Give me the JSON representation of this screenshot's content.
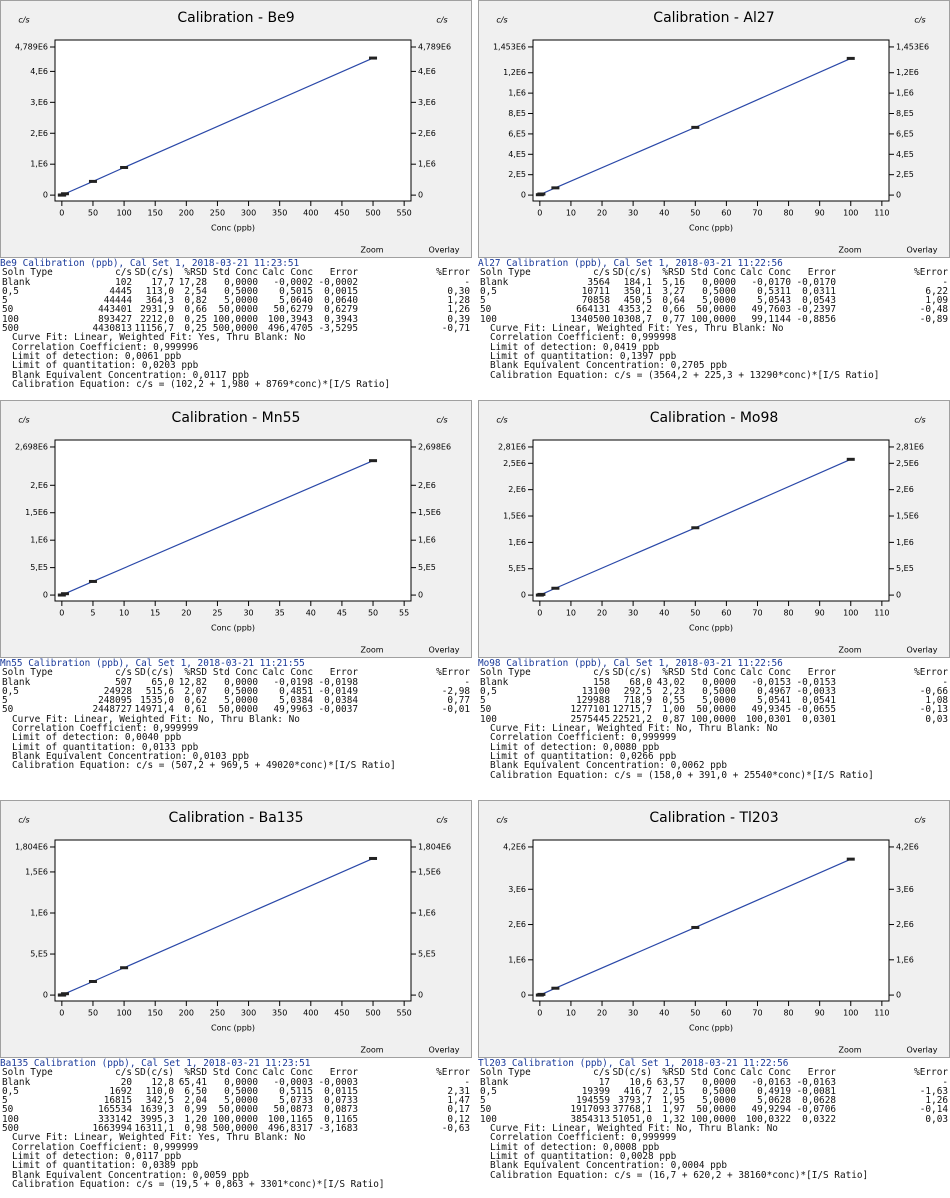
{
  "panels": [
    {
      "chart": {
        "type": "line",
        "title": "Calibration - Be9",
        "ylabel": "c/s",
        "xlabel": "Conc (ppb)",
        "zoom": "Zoom",
        "overlay": "Overlay",
        "xlim": [
          -11,
          561
        ],
        "xticks": [
          0,
          50,
          100,
          150,
          200,
          250,
          300,
          350,
          400,
          450,
          500,
          550
        ],
        "ylim": [
          -190000,
          5015000
        ],
        "yticks": [
          0,
          {
            "value": 1000000,
            "label": "1,E6"
          },
          {
            "value": 2000000,
            "label": "2,E6"
          },
          {
            "value": 3000000,
            "label": "3,E6"
          },
          {
            "value": 4000000,
            "label": "4,E6"
          },
          {
            "value": 4789000,
            "label": "4,789E6"
          }
        ],
        "color": "#2a48a8",
        "x": [
          0,
          0.5,
          5,
          50,
          100,
          500
        ],
        "y": [
          102,
          4445,
          44444,
          443401,
          893427,
          4430813
        ]
      },
      "report": {
        "heading": "Be9 Calibration (ppb), Cal Set 1, 2018-03-21 11:23:51",
        "columns": [
          "Soln Type",
          "c/s",
          "SD(c/s)",
          "%RSD",
          "Std Conc",
          "Calc Conc",
          "Error",
          "%Error"
        ],
        "rows": [
          [
            "Blank",
            "102",
            "17,7",
            "17,28",
            "0,0000",
            "-0,0002",
            "-0,0002",
            "-"
          ],
          [
            "0,5",
            "4445",
            "113,0",
            "2,54",
            "0,5000",
            "0,5015",
            "0,0015",
            "0,30"
          ],
          [
            "5",
            "44444",
            "364,3",
            "0,82",
            "5,0000",
            "5,0640",
            "0,0640",
            "1,28"
          ],
          [
            "50",
            "443401",
            "2931,9",
            "0,66",
            "50,0000",
            "50,6279",
            "0,6279",
            "1,26"
          ],
          [
            "100",
            "893427",
            "2212,0",
            "0,25",
            "100,0000",
            "100,3943",
            "0,3943",
            "0,39"
          ],
          [
            "500",
            "4430813",
            "11156,7",
            "0,25",
            "500,0000",
            "496,4705",
            "-3,5295",
            "-0,71"
          ]
        ],
        "footer": [
          "Curve Fit: Linear, Weighted Fit: Yes, Thru Blank: No",
          "Correlation Coefficient: 0,999996",
          "Limit of detection: 0,0061 ppb",
          "Limit of quantitation: 0,0203 ppb",
          "Blank Equivalent Concentration: 0,0117 ppb",
          "Calibration Equation: c/s = (102,2 + 1,980 + 8769*conc)*[I/S Ratio]"
        ]
      }
    },
    {
      "chart": {
        "type": "line",
        "title": "Calibration - Al27",
        "ylabel": "c/s",
        "xlabel": "Conc (ppb)",
        "zoom": "Zoom",
        "overlay": "Overlay",
        "xlim": [
          -2.2,
          112.3
        ],
        "xticks": [
          0,
          10,
          20,
          30,
          40,
          50,
          60,
          70,
          80,
          90,
          100,
          110
        ],
        "ylim": [
          -58000,
          1521000
        ],
        "yticks": [
          0,
          {
            "value": 200000,
            "label": "2,E5"
          },
          {
            "value": 400000,
            "label": "4,E5"
          },
          {
            "value": 600000,
            "label": "6,E5"
          },
          {
            "value": 800000,
            "label": "8,E5"
          },
          {
            "value": 1000000,
            "label": "1,E6"
          },
          {
            "value": 1200000,
            "label": "1,2E6"
          },
          {
            "value": 1453000,
            "label": "1,453E6"
          }
        ],
        "color": "#2a48a8",
        "x": [
          0,
          0.5,
          5,
          50,
          100
        ],
        "y": [
          3564,
          10711,
          70858,
          664131,
          1340500
        ]
      },
      "report": {
        "heading": "Al27 Calibration (ppb), Cal Set 1, 2018-03-21 11:22:56",
        "columns": [
          "Soln Type",
          "c/s",
          "SD(c/s)",
          "%RSD",
          "Std Conc",
          "Calc Conc",
          "Error",
          "%Error"
        ],
        "rows": [
          [
            "Blank",
            "3564",
            "184,1",
            "5,16",
            "0,0000",
            "-0,0170",
            "-0,0170",
            "-"
          ],
          [
            "0,5",
            "10711",
            "350,1",
            "3,27",
            "0,5000",
            "0,5311",
            "0,0311",
            "6,22"
          ],
          [
            "5",
            "70858",
            "450,5",
            "0,64",
            "5,0000",
            "5,0543",
            "0,0543",
            "1,09"
          ],
          [
            "50",
            "664131",
            "4353,2",
            "0,66",
            "50,0000",
            "49,7603",
            "-0,2397",
            "-0,48"
          ],
          [
            "100",
            "1340500",
            "10308,7",
            "0,77",
            "100,0000",
            "99,1144",
            "-0,8856",
            "-0,89"
          ]
        ],
        "footer": [
          "Curve Fit: Linear, Weighted Fit: Yes, Thru Blank: No",
          "Correlation Coefficient: 0,999998",
          "Limit of detection: 0,0419 ppb",
          "Limit of quantitation: 0,1397 ppb",
          "Blank Equivalent Concentration: 0,2705 ppb",
          "Calibration Equation: c/s = (3564,2 + 225,3 + 13290*conc)*[I/S Ratio]"
        ]
      }
    },
    {
      "chart": {
        "type": "line",
        "title": "Calibration - Mn55",
        "ylabel": "c/s",
        "xlabel": "Conc (ppb)",
        "zoom": "Zoom",
        "overlay": "Overlay",
        "xlim": [
          -1.1,
          56.1
        ],
        "xticks": [
          0,
          5,
          10,
          15,
          20,
          25,
          30,
          35,
          40,
          45,
          50,
          55
        ],
        "ylim": [
          -108000,
          2825000
        ],
        "yticks": [
          0,
          {
            "value": 500000,
            "label": "5,E5"
          },
          {
            "value": 1000000,
            "label": "1,E6"
          },
          {
            "value": 1500000,
            "label": "1,5E6"
          },
          {
            "value": 2000000,
            "label": "2,E6"
          },
          {
            "value": 2698000,
            "label": "2,698E6"
          }
        ],
        "color": "#2a48a8",
        "x": [
          0,
          0.5,
          5,
          50
        ],
        "y": [
          507,
          24928,
          248095,
          2448727
        ]
      },
      "report": {
        "heading": "Mn55 Calibration (ppb), Cal Set 1, 2018-03-21 11:21:55",
        "columns": [
          "Soln Type",
          "c/s",
          "SD(c/s)",
          "%RSD",
          "Std Conc",
          "Calc Conc",
          "Error",
          "%Error"
        ],
        "rows": [
          [
            "Blank",
            "507",
            "65,0",
            "12,82",
            "0,0000",
            "-0,0198",
            "-0,0198",
            "-"
          ],
          [
            "0,5",
            "24928",
            "515,6",
            "2,07",
            "0,5000",
            "0,4851",
            "-0,0149",
            "-2,98"
          ],
          [
            "5",
            "248095",
            "1535,0",
            "0,62",
            "5,0000",
            "5,0384",
            "0,0384",
            "0,77"
          ],
          [
            "50",
            "2448727",
            "14971,4",
            "0,61",
            "50,0000",
            "49,9963",
            "-0,0037",
            "-0,01"
          ]
        ],
        "footer": [
          "Curve Fit: Linear, Weighted Fit: No, Thru Blank: No",
          "Correlation Coefficient: 0,999999",
          "Limit of detection: 0,0040 ppb",
          "Limit of quantitation: 0,0133 ppb",
          "Blank Equivalent Concentration: 0,0103 ppb",
          "Calibration Equation: c/s = (507,2 + 969,5 + 49020*conc)*[I/S Ratio]"
        ]
      }
    },
    {
      "chart": {
        "type": "line",
        "title": "Calibration - Mo98",
        "ylabel": "c/s",
        "xlabel": "Conc (ppb)",
        "zoom": "Zoom",
        "overlay": "Overlay",
        "xlim": [
          -2.2,
          112.3
        ],
        "xticks": [
          0,
          10,
          20,
          30,
          40,
          50,
          60,
          70,
          80,
          90,
          100,
          110
        ],
        "ylim": [
          -112000,
          2942000
        ],
        "yticks": [
          0,
          {
            "value": 500000,
            "label": "5,E5"
          },
          {
            "value": 1000000,
            "label": "1,E6"
          },
          {
            "value": 1500000,
            "label": "1,5E6"
          },
          {
            "value": 2000000,
            "label": "2,E6"
          },
          {
            "value": 2500000,
            "label": "2,5E6"
          },
          {
            "value": 2810000,
            "label": "2,81E6"
          }
        ],
        "color": "#2a48a8",
        "x": [
          0,
          0.5,
          5,
          50,
          100
        ],
        "y": [
          158,
          13100,
          129988,
          1277101,
          2575445
        ]
      },
      "report": {
        "heading": "Mo98 Calibration (ppb), Cal Set 1, 2018-03-21 11:22:56",
        "columns": [
          "Soln Type",
          "c/s",
          "SD(c/s)",
          "%RSD",
          "Std Conc",
          "Calc Conc",
          "Error",
          "%Error"
        ],
        "rows": [
          [
            "Blank",
            "158",
            "68,0",
            "43,02",
            "0,0000",
            "-0,0153",
            "-0,0153",
            "-"
          ],
          [
            "0,5",
            "13100",
            "292,5",
            "2,23",
            "0,5000",
            "0,4967",
            "-0,0033",
            "-0,66"
          ],
          [
            "5",
            "129988",
            "718,9",
            "0,55",
            "5,0000",
            "5,0541",
            "0,0541",
            "1,08"
          ],
          [
            "50",
            "1277101",
            "12715,7",
            "1,00",
            "50,0000",
            "49,9345",
            "-0,0655",
            "-0,13"
          ],
          [
            "100",
            "2575445",
            "22521,2",
            "0,87",
            "100,0000",
            "100,0301",
            "0,0301",
            "0,03"
          ]
        ],
        "footer": [
          "Curve Fit: Linear, Weighted Fit: No, Thru Blank: No",
          "Correlation Coefficient: 0,999999",
          "Limit of detection: 0,0080 ppb",
          "Limit of quantitation: 0,0266 ppb",
          "Blank Equivalent Concentration: 0,0062 ppb",
          "Calibration Equation: c/s = (158,0 + 391,0 + 25540*conc)*[I/S Ratio]"
        ]
      }
    },
    {
      "chart": {
        "type": "line",
        "title": "Calibration - Ba135",
        "ylabel": "c/s",
        "xlabel": "Conc (ppb)",
        "zoom": "Zoom",
        "overlay": "Overlay",
        "xlim": [
          -11,
          561
        ],
        "xticks": [
          0,
          50,
          100,
          150,
          200,
          250,
          300,
          350,
          400,
          450,
          500,
          550
        ],
        "ylim": [
          -72000,
          1889000
        ],
        "yticks": [
          0,
          {
            "value": 500000,
            "label": "5,E5"
          },
          {
            "value": 1000000,
            "label": "1,E6"
          },
          {
            "value": 1500000,
            "label": "1,5E6"
          },
          {
            "value": 1804000,
            "label": "1,804E6"
          }
        ],
        "color": "#2a48a8",
        "x": [
          0,
          0.5,
          5,
          50,
          100,
          500
        ],
        "y": [
          20,
          1692,
          16815,
          165534,
          333142,
          1663994
        ]
      },
      "report": {
        "heading": "Ba135 Calibration (ppb), Cal Set 1, 2018-03-21 11:23:51",
        "columns": [
          "Soln Type",
          "c/s",
          "SD(c/s)",
          "%RSD",
          "Std Conc",
          "Calc Conc",
          "Error",
          "%Error"
        ],
        "rows": [
          [
            "Blank",
            "20",
            "12,8",
            "65,41",
            "0,0000",
            "-0,0003",
            "-0,0003",
            "-"
          ],
          [
            "0,5",
            "1692",
            "110,0",
            "6,50",
            "0,5000",
            "0,5115",
            "0,0115",
            "2,31"
          ],
          [
            "5",
            "16815",
            "342,5",
            "2,04",
            "5,0000",
            "5,0733",
            "0,0733",
            "1,47"
          ],
          [
            "50",
            "165534",
            "1639,3",
            "0,99",
            "50,0000",
            "50,0873",
            "0,0873",
            "0,17"
          ],
          [
            "100",
            "333142",
            "3995,3",
            "1,20",
            "100,0000",
            "100,1165",
            "0,1165",
            "0,12"
          ],
          [
            "500",
            "1663994",
            "16311,1",
            "0,98",
            "500,0000",
            "496,8317",
            "-3,1683",
            "-0,63"
          ]
        ],
        "footer": [
          "Curve Fit: Linear, Weighted Fit: Yes, Thru Blank: No",
          "Correlation Coefficient: 0,999999",
          "Limit of detection: 0,0117 ppb",
          "Limit of quantitation: 0,0389 ppb",
          "Blank Equivalent Concentration: 0,0059 ppb",
          "Calibration Equation: c/s = (19,5 + 0,863 + 3301*conc)*[I/S Ratio]"
        ]
      }
    },
    {
      "chart": {
        "type": "line",
        "title": "Calibration - Tl203",
        "ylabel": "c/s",
        "xlabel": "Conc (ppb)",
        "zoom": "Zoom",
        "overlay": "Overlay",
        "xlim": [
          -2.2,
          112.3
        ],
        "xticks": [
          0,
          10,
          20,
          30,
          40,
          50,
          60,
          70,
          80,
          90,
          100,
          110
        ],
        "ylim": [
          -168000,
          4397000
        ],
        "yticks": [
          0,
          {
            "value": 1000000,
            "label": "1,E6"
          },
          {
            "value": 2000000,
            "label": "2,E6"
          },
          {
            "value": 3000000,
            "label": "3,E6"
          },
          {
            "value": 4200000,
            "label": "4,2E6"
          }
        ],
        "color": "#2a48a8",
        "x": [
          0,
          0.5,
          5,
          50,
          100
        ],
        "y": [
          17,
          19399,
          194559,
          1917093,
          3854313
        ]
      },
      "report": {
        "heading": "Tl203 Calibration (ppb), Cal Set 1, 2018-03-21 11:22:56",
        "columns": [
          "Soln Type",
          "c/s",
          "SD(c/s)",
          "%RSD",
          "Std Conc",
          "Calc Conc",
          "Error",
          "%Error"
        ],
        "rows": [
          [
            "Blank",
            "17",
            "10,6",
            "63,57",
            "0,0000",
            "-0,0163",
            "-0,0163",
            "-"
          ],
          [
            "0,5",
            "19399",
            "416,7",
            "2,15",
            "0,5000",
            "0,4919",
            "-0,0081",
            "-1,63"
          ],
          [
            "5",
            "194559",
            "3793,7",
            "1,95",
            "5,0000",
            "5,0628",
            "0,0628",
            "1,26"
          ],
          [
            "50",
            "1917093",
            "37768,1",
            "1,97",
            "50,0000",
            "49,9294",
            "-0,0706",
            "-0,14"
          ],
          [
            "100",
            "3854313",
            "51051,0",
            "1,32",
            "100,0000",
            "100,0322",
            "0,0322",
            "0,03"
          ]
        ],
        "footer": [
          "Curve Fit: Linear, Weighted Fit: No, Thru Blank: No",
          "Correlation Coefficient: 0,999999",
          "Limit of detection: 0,0008 ppb",
          "Limit of quantitation: 0,0028 ppb",
          "Blank Equivalent Concentration: 0,0004 ppb",
          "Calibration Equation: c/s = (16,7 + 620,2 + 38160*conc)*[I/S Ratio]"
        ]
      }
    }
  ]
}
